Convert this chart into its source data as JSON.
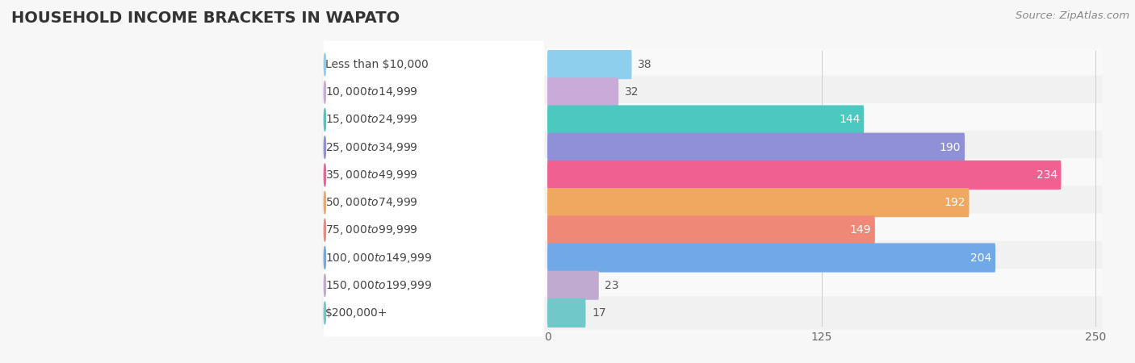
{
  "title": "HOUSEHOLD INCOME BRACKETS IN WAPATO",
  "source": "Source: ZipAtlas.com",
  "categories": [
    "Less than $10,000",
    "$10,000 to $14,999",
    "$15,000 to $24,999",
    "$25,000 to $34,999",
    "$35,000 to $49,999",
    "$50,000 to $74,999",
    "$75,000 to $99,999",
    "$100,000 to $149,999",
    "$150,000 to $199,999",
    "$200,000+"
  ],
  "values": [
    38,
    32,
    144,
    190,
    234,
    192,
    149,
    204,
    23,
    17
  ],
  "bar_colors": [
    "#8ecfee",
    "#c9aad8",
    "#4dc8c0",
    "#9090d8",
    "#f06090",
    "#f0a860",
    "#f08878",
    "#70a8e8",
    "#c0aad0",
    "#70c8c8"
  ],
  "xlim": [
    0,
    250
  ],
  "xticks": [
    0,
    125,
    250
  ],
  "background_color": "#f7f7f7",
  "row_bg_color": "#ffffff",
  "row_alt_bg_color": "#f0f0f0",
  "title_fontsize": 14,
  "label_fontsize": 10,
  "value_fontsize": 10,
  "source_fontsize": 9.5,
  "value_threshold": 60
}
